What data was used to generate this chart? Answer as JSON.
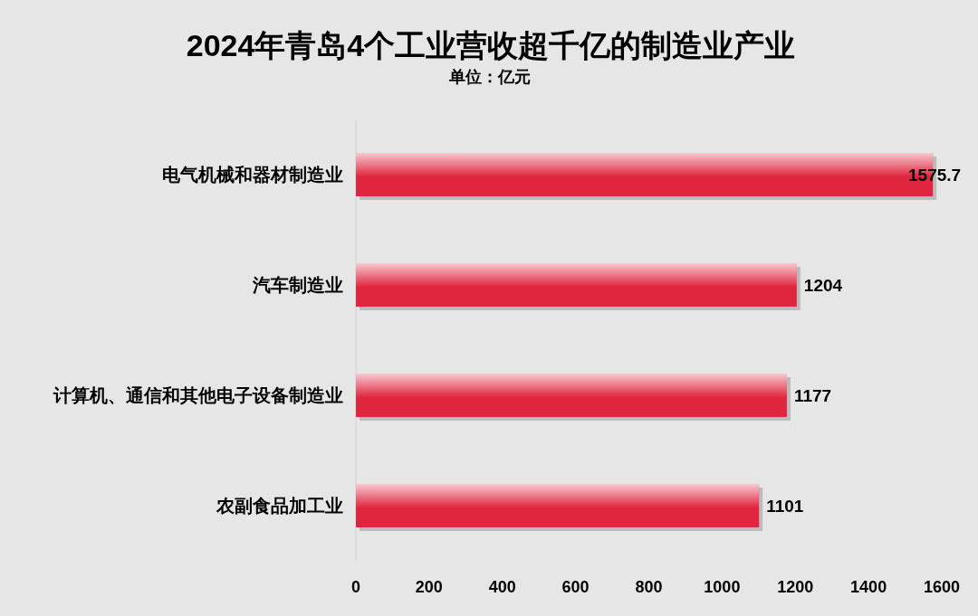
{
  "chart_data": {
    "type": "bar",
    "orientation": "horizontal",
    "title": "2024年青岛4个工业营收超千亿的制造业产业",
    "subtitle": "单位：亿元",
    "categories": [
      "电气机械和器材制造业",
      "汽车制造业",
      "计算机、通信和其他电子设备制造业",
      "农副食品加工业"
    ],
    "values": [
      1575.7,
      1204,
      1177,
      1101
    ],
    "color": "#e0263f",
    "xlim": [
      0,
      1600
    ],
    "xticks": [
      0,
      200,
      400,
      600,
      800,
      1000,
      1200,
      1400,
      1600
    ],
    "data_labels": true
  }
}
